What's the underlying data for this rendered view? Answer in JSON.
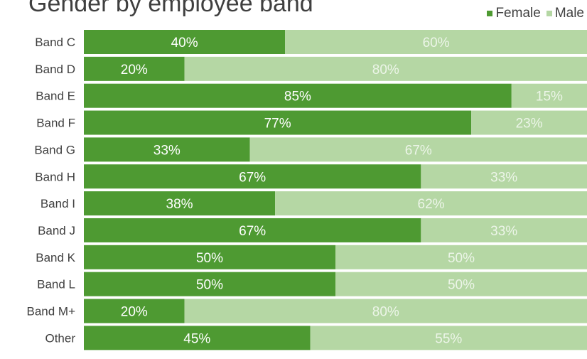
{
  "chart_data": {
    "type": "bar",
    "orientation": "horizontal",
    "stacked": "100%",
    "title": "Gender by employee band",
    "categories": [
      "Band C",
      "Band D",
      "Band E",
      "Band F",
      "Band G",
      "Band H",
      "Band I",
      "Band J",
      "Band K",
      "Band L",
      "Band M+",
      "Other"
    ],
    "series": [
      {
        "name": "Female",
        "color": "#4e9a32",
        "values": [
          40,
          20,
          85,
          77,
          33,
          67,
          38,
          67,
          50,
          50,
          20,
          45
        ]
      },
      {
        "name": "Male",
        "color": "#b5d7a4",
        "values": [
          60,
          80,
          15,
          23,
          67,
          33,
          62,
          33,
          50,
          50,
          80,
          55
        ]
      }
    ],
    "value_suffix": "%",
    "xlim": [
      0,
      100
    ],
    "legend": "top-right",
    "grid": false
  }
}
